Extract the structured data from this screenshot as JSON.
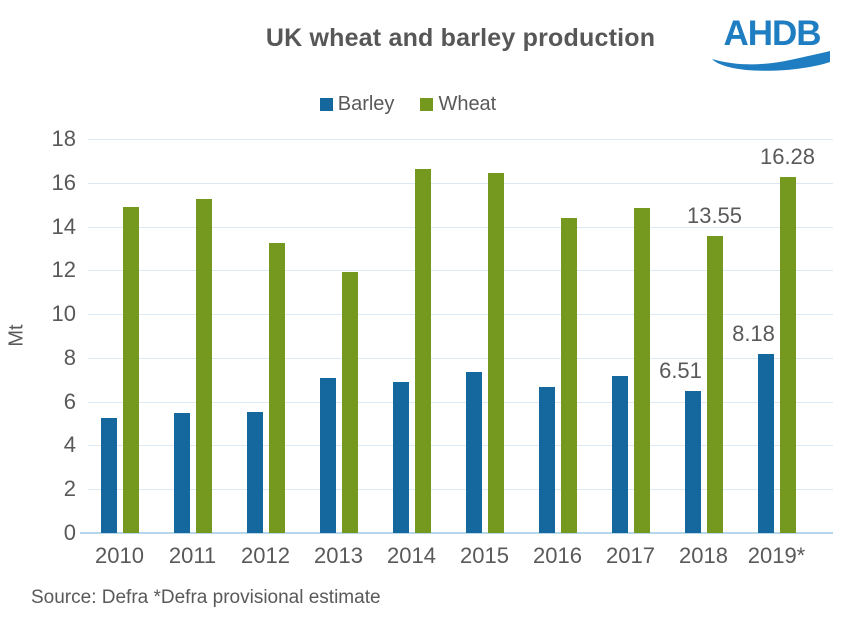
{
  "header": {
    "title": "UK wheat and barley production",
    "logo_text": "AHDB"
  },
  "footer": {
    "source": "Source: Defra   *Defra provisional estimate"
  },
  "colors": {
    "barley_blue": "#15689e",
    "wheat_green": "#75991e",
    "logo_blue": "#1f7dc1",
    "text_gray": "#595959",
    "gridline": "#dceaf5",
    "baseline": "#b6d6ec"
  },
  "chart_data": {
    "type": "bar",
    "title": "UK wheat and barley production",
    "categories": [
      "2010",
      "2011",
      "2012",
      "2013",
      "2014",
      "2015",
      "2016",
      "2017",
      "2018",
      "2019*"
    ],
    "series": [
      {
        "name": "Barley",
        "color": "#15689e",
        "values": [
          5.25,
          5.49,
          5.52,
          7.09,
          6.91,
          7.37,
          6.66,
          7.17,
          6.51,
          8.18
        ]
      },
      {
        "name": "Wheat",
        "color": "#75991e",
        "values": [
          14.88,
          15.26,
          13.26,
          11.92,
          16.61,
          16.44,
          14.38,
          14.84,
          13.55,
          16.28
        ]
      }
    ],
    "xlabel": "",
    "ylabel": "Mt",
    "ylim": [
      0,
      18
    ],
    "ytick_step": 2,
    "grid": true,
    "legend_position": "top",
    "annotations": [
      {
        "series": "Barley",
        "category": "2018",
        "label": "6.51",
        "dx": -12
      },
      {
        "series": "Wheat",
        "category": "2018",
        "label": "13.55",
        "dx": 0
      },
      {
        "series": "Barley",
        "category": "2019*",
        "label": "8.18",
        "dx": -12
      },
      {
        "series": "Wheat",
        "category": "2019*",
        "label": "16.28",
        "dx": 0
      }
    ]
  }
}
